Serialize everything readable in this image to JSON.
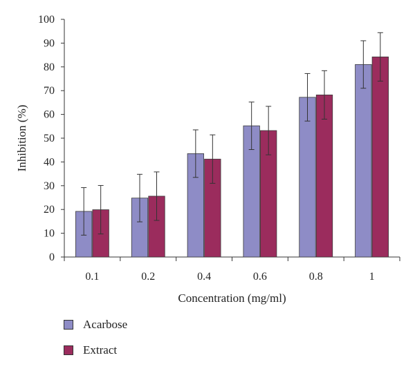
{
  "chart_data": {
    "type": "bar",
    "categories": [
      "0.1",
      "0.2",
      "0.4",
      "0.6",
      "0.8",
      "1"
    ],
    "series": [
      {
        "name": "Acarbose",
        "color": "#8e8cc6",
        "values": [
          19.2,
          24.8,
          43.5,
          55.2,
          67.2,
          81.0
        ],
        "errors": [
          10.0,
          10.0,
          10.0,
          10.0,
          10.0,
          10.0
        ]
      },
      {
        "name": "Extract",
        "color": "#9b2c5d",
        "values": [
          19.9,
          25.6,
          41.2,
          53.2,
          68.2,
          84.2
        ],
        "errors": [
          10.2,
          10.2,
          10.2,
          10.2,
          10.2,
          10.2
        ]
      }
    ],
    "xlabel": "Concentration (mg/ml)",
    "ylabel": "Inhibition (%)",
    "ylim": [
      0,
      100
    ],
    "yticks": [
      "0",
      "10",
      "20",
      "30",
      "40",
      "50",
      "60",
      "70",
      "80",
      "90",
      "100"
    ],
    "grid": false,
    "legend_position": "bottom-left"
  }
}
